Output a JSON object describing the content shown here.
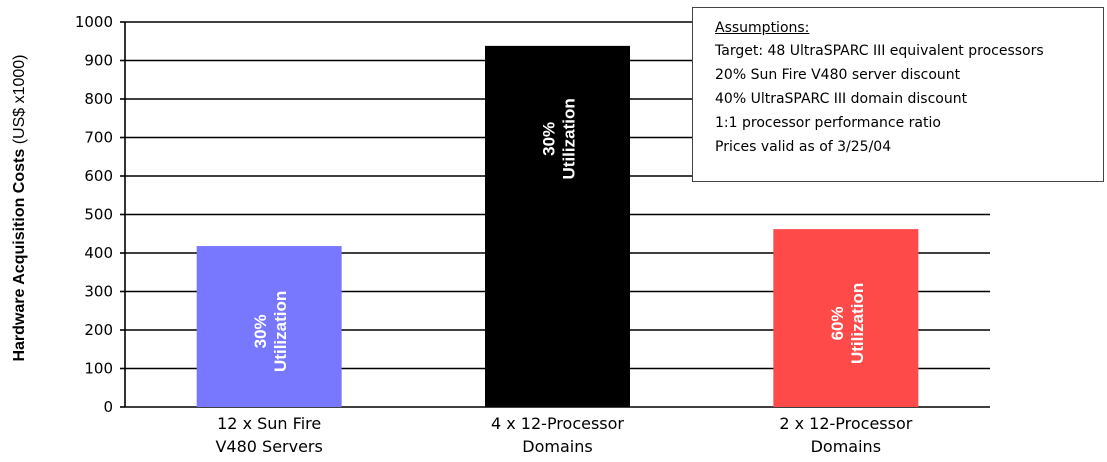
{
  "chart_data": {
    "type": "bar",
    "categories": [
      "12 x Sun Fire\nV480 Servers",
      "4 x 12-Processor\nDomains",
      "2 x 12-Processor\nDomains"
    ],
    "values": [
      418,
      938,
      462
    ],
    "bar_colors": [
      "#7878ff",
      "#000000",
      "#ff4a4a"
    ],
    "bar_labels": [
      [
        "30%",
        "Utilization"
      ],
      [
        "30%",
        "Utilization"
      ],
      [
        "60%",
        "Utilization"
      ]
    ],
    "ylabel_bold": "Hardware Acquisition Costs",
    "ylabel_normal": " (US$ x1000)",
    "ylim": [
      0,
      1000
    ],
    "yticks": [
      0,
      100,
      200,
      300,
      400,
      500,
      600,
      700,
      800,
      900,
      1000
    ],
    "grid": true
  },
  "assumptions": {
    "title": "Assumptions:",
    "lines": [
      "Target: 48 UltraSPARC III equivalent processors",
      "20% Sun Fire V480 server discount",
      "40% UltraSPARC III domain discount",
      "1:1 processor performance ratio",
      "Prices valid as of 3/25/04"
    ]
  }
}
